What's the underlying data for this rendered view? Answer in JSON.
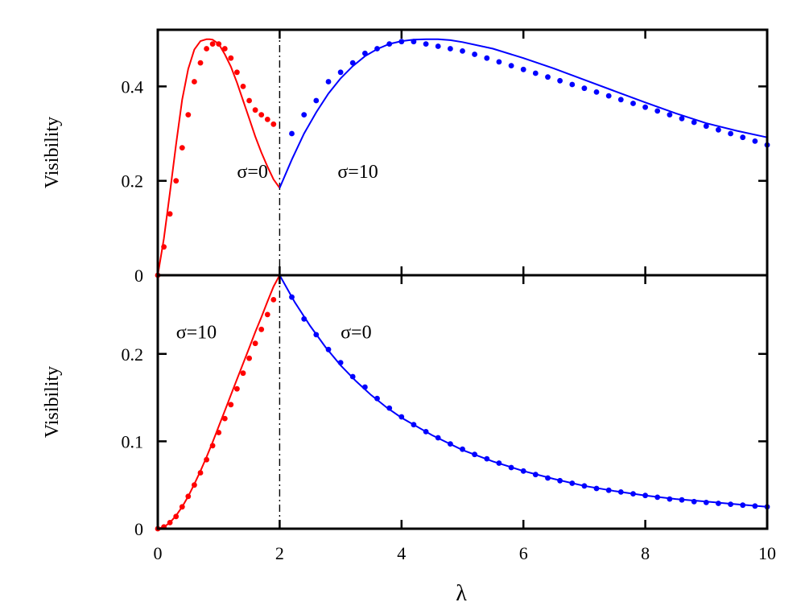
{
  "chart_data": [
    {
      "type": "line",
      "panel": "top",
      "title": "",
      "xlabel": "",
      "ylabel": "Visibility",
      "xlim": [
        0,
        10
      ],
      "ylim": [
        0,
        0.52
      ],
      "x_ticks": [
        0,
        2,
        4,
        6,
        8,
        10
      ],
      "x_tick_labels": [
        "",
        "",
        "",
        "",
        "",
        ""
      ],
      "y_ticks": [
        0,
        0.2,
        0.4
      ],
      "y_tick_labels": [
        "0",
        "0.2",
        "0.4"
      ],
      "grid": false,
      "divider": {
        "x": 2,
        "style": "dash-dot",
        "color": "#000000"
      },
      "annotations": [
        {
          "text": "σ=0",
          "x": 1.3,
          "y": 0.22
        },
        {
          "text": "σ=10",
          "x": 2.95,
          "y": 0.22
        }
      ],
      "series": [
        {
          "kind": "line",
          "color": "#ff0000",
          "x": [
            0,
            0.1,
            0.2,
            0.3,
            0.4,
            0.5,
            0.6,
            0.7,
            0.8,
            0.85,
            0.9,
            1.0,
            1.1,
            1.2,
            1.3,
            1.4,
            1.5,
            1.6,
            1.7,
            1.8,
            1.9,
            2.0
          ],
          "y": [
            0,
            0.078,
            0.175,
            0.277,
            0.372,
            0.437,
            0.478,
            0.496,
            0.5,
            0.5,
            0.499,
            0.49,
            0.468,
            0.442,
            0.408,
            0.37,
            0.332,
            0.294,
            0.26,
            0.23,
            0.203,
            0.185
          ]
        },
        {
          "kind": "points",
          "color": "#ff0000",
          "x": [
            0,
            0.1,
            0.2,
            0.3,
            0.4,
            0.5,
            0.6,
            0.7,
            0.8,
            0.9,
            1.0,
            1.1,
            1.2,
            1.3,
            1.4,
            1.5,
            1.6,
            1.7,
            1.8,
            1.9
          ],
          "y": [
            0,
            0.06,
            0.13,
            0.2,
            0.27,
            0.34,
            0.41,
            0.45,
            0.48,
            0.49,
            0.49,
            0.48,
            0.46,
            0.43,
            0.4,
            0.37,
            0.35,
            0.34,
            0.33,
            0.32
          ]
        },
        {
          "kind": "line",
          "color": "#0000ff",
          "x": [
            2.0,
            2.2,
            2.4,
            2.6,
            2.8,
            3.0,
            3.2,
            3.4,
            3.6,
            3.8,
            4.0,
            4.2,
            4.4,
            4.6,
            4.8,
            5.0,
            5.5,
            6.0,
            6.5,
            7.0,
            7.5,
            8.0,
            8.5,
            9.0,
            9.5,
            10.0
          ],
          "y": [
            0.185,
            0.245,
            0.3,
            0.345,
            0.385,
            0.417,
            0.443,
            0.464,
            0.479,
            0.49,
            0.496,
            0.499,
            0.5,
            0.5,
            0.498,
            0.494,
            0.48,
            0.46,
            0.438,
            0.414,
            0.39,
            0.366,
            0.343,
            0.322,
            0.306,
            0.292
          ]
        },
        {
          "kind": "points",
          "color": "#0000ff",
          "x": [
            2.2,
            2.4,
            2.6,
            2.8,
            3.0,
            3.2,
            3.4,
            3.6,
            3.8,
            4.0,
            4.2,
            4.4,
            4.6,
            4.8,
            5.0,
            5.2,
            5.4,
            5.6,
            5.8,
            6.0,
            6.2,
            6.4,
            6.6,
            6.8,
            7.0,
            7.2,
            7.4,
            7.6,
            7.8,
            8.0,
            8.2,
            8.4,
            8.6,
            8.8,
            9.0,
            9.2,
            9.4,
            9.6,
            9.8,
            10.0
          ],
          "y": [
            0.3,
            0.34,
            0.37,
            0.41,
            0.43,
            0.45,
            0.47,
            0.48,
            0.49,
            0.495,
            0.495,
            0.49,
            0.485,
            0.48,
            0.475,
            0.468,
            0.46,
            0.452,
            0.444,
            0.436,
            0.428,
            0.42,
            0.412,
            0.404,
            0.396,
            0.388,
            0.38,
            0.372,
            0.364,
            0.356,
            0.348,
            0.34,
            0.332,
            0.324,
            0.316,
            0.308,
            0.3,
            0.292,
            0.284,
            0.276
          ]
        }
      ]
    },
    {
      "type": "line",
      "panel": "bottom",
      "title": "",
      "xlabel": "λ",
      "ylabel": "Visibility",
      "xlim": [
        0,
        10
      ],
      "ylim": [
        0,
        0.29
      ],
      "x_ticks": [
        0,
        2,
        4,
        6,
        8,
        10
      ],
      "x_tick_labels": [
        "0",
        "2",
        "4",
        "6",
        "8",
        "10"
      ],
      "y_ticks": [
        0,
        0.1,
        0.2
      ],
      "y_tick_labels": [
        "0",
        "0.1",
        "0.2"
      ],
      "grid": false,
      "divider": {
        "x": 2,
        "style": "dash-dot",
        "color": "#000000"
      },
      "annotations": [
        {
          "text": "σ=10",
          "x": 0.3,
          "y": 0.225
        },
        {
          "text": "σ=0",
          "x": 3.0,
          "y": 0.225
        }
      ],
      "series": [
        {
          "kind": "line",
          "color": "#ff0000",
          "x": [
            0,
            0.1,
            0.2,
            0.3,
            0.4,
            0.5,
            0.6,
            0.7,
            0.8,
            0.9,
            1.0,
            1.1,
            1.2,
            1.3,
            1.4,
            1.5,
            1.6,
            1.7,
            1.8,
            1.9,
            2.0
          ],
          "y": [
            0,
            0.002,
            0.007,
            0.015,
            0.025,
            0.037,
            0.051,
            0.066,
            0.082,
            0.099,
            0.117,
            0.135,
            0.153,
            0.171,
            0.189,
            0.207,
            0.225,
            0.242,
            0.26,
            0.277,
            0.29
          ]
        },
        {
          "kind": "points",
          "color": "#ff0000",
          "x": [
            0,
            0.1,
            0.2,
            0.3,
            0.4,
            0.5,
            0.6,
            0.7,
            0.8,
            0.9,
            1.0,
            1.1,
            1.2,
            1.3,
            1.4,
            1.5,
            1.6,
            1.7,
            1.8,
            1.9
          ],
          "y": [
            0,
            0.002,
            0.007,
            0.014,
            0.025,
            0.037,
            0.05,
            0.064,
            0.079,
            0.095,
            0.11,
            0.126,
            0.142,
            0.16,
            0.178,
            0.195,
            0.212,
            0.228,
            0.245,
            0.262
          ]
        },
        {
          "kind": "line",
          "color": "#0000ff",
          "x": [
            2.0,
            2.25,
            2.5,
            2.75,
            3.0,
            3.25,
            3.5,
            3.75,
            4.0,
            4.5,
            5.0,
            5.5,
            6.0,
            6.5,
            7.0,
            7.5,
            8.0,
            8.5,
            9.0,
            9.5,
            10.0
          ],
          "y": [
            0.29,
            0.259,
            0.232,
            0.208,
            0.187,
            0.169,
            0.153,
            0.139,
            0.127,
            0.107,
            0.09,
            0.077,
            0.066,
            0.057,
            0.049,
            0.043,
            0.038,
            0.034,
            0.031,
            0.028,
            0.025
          ]
        },
        {
          "kind": "points",
          "color": "#0000ff",
          "x": [
            2.2,
            2.4,
            2.6,
            2.8,
            3.0,
            3.2,
            3.4,
            3.6,
            3.8,
            4.0,
            4.2,
            4.4,
            4.6,
            4.8,
            5.0,
            5.2,
            5.4,
            5.6,
            5.8,
            6.0,
            6.2,
            6.4,
            6.6,
            6.8,
            7.0,
            7.2,
            7.4,
            7.6,
            7.8,
            8.0,
            8.2,
            8.4,
            8.6,
            8.8,
            9.0,
            9.2,
            9.4,
            9.6,
            9.8,
            10.0
          ],
          "y": [
            0.265,
            0.24,
            0.222,
            0.205,
            0.19,
            0.174,
            0.162,
            0.149,
            0.138,
            0.128,
            0.119,
            0.111,
            0.104,
            0.097,
            0.091,
            0.085,
            0.08,
            0.075,
            0.07,
            0.066,
            0.062,
            0.058,
            0.055,
            0.052,
            0.049,
            0.046,
            0.044,
            0.042,
            0.04,
            0.038,
            0.036,
            0.034,
            0.033,
            0.031,
            0.03,
            0.029,
            0.028,
            0.027,
            0.026,
            0.025
          ]
        }
      ]
    }
  ]
}
